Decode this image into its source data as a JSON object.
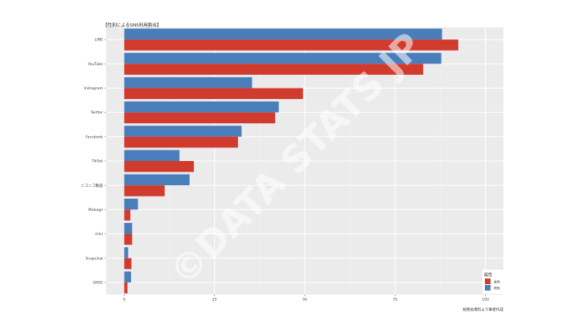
{
  "chart_data": {
    "type": "bar",
    "orientation": "horizontal",
    "title": "【性別によるSNS利用割合】",
    "categories": [
      "LINE",
      "YouTube",
      "Instagram",
      "Twitter",
      "Facebook",
      "TikTok",
      "ニコニコ動画",
      "Mobage",
      "mixi",
      "Snapchat",
      "GREE"
    ],
    "series": [
      {
        "name": "男性",
        "color": "#4a7ebb",
        "values": [
          88.0,
          87.8,
          35.4,
          42.8,
          32.5,
          15.3,
          18.1,
          3.8,
          2.2,
          1.1,
          1.9
        ]
      },
      {
        "name": "女性",
        "color": "#d13b2e",
        "values": [
          92.5,
          82.8,
          49.5,
          41.8,
          31.5,
          19.3,
          11.2,
          1.7,
          2.2,
          2.0,
          0.9
        ]
      }
    ],
    "xlim": [
      -5,
      105
    ],
    "xticks": [
      0,
      25,
      50,
      75,
      100
    ],
    "grid": true,
    "legend": {
      "title": "属性",
      "position": "bottom-right"
    },
    "caption": "総務省資料より筆者作成",
    "watermark": "©DATA STATS JP"
  }
}
